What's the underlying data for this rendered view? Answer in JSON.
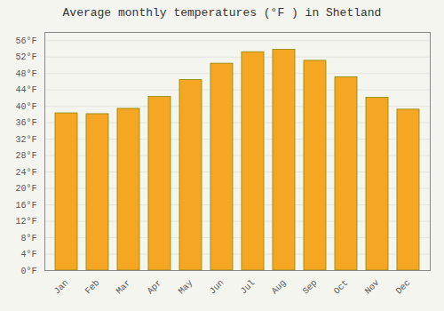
{
  "chart_data": {
    "type": "bar",
    "title": "Average monthly temperatures (°F ) in Shetland",
    "categories": [
      "Jan",
      "Feb",
      "Mar",
      "Apr",
      "May",
      "Jun",
      "Jul",
      "Aug",
      "Sep",
      "Oct",
      "Nov",
      "Dec"
    ],
    "values": [
      38.3,
      38.1,
      39.4,
      42.3,
      46.4,
      50.4,
      53.2,
      53.8,
      51.1,
      47.1,
      42.1,
      39.2
    ],
    "color": "#F5A623",
    "ylim": [
      0,
      58
    ],
    "yticks": [
      {
        "value": 0,
        "label": "0°F"
      },
      {
        "value": 4,
        "label": "4°F"
      },
      {
        "value": 8,
        "label": "8°F"
      },
      {
        "value": 12,
        "label": "12°F"
      },
      {
        "value": 16,
        "label": "16°F"
      },
      {
        "value": 20,
        "label": "20°F"
      },
      {
        "value": 24,
        "label": "24°F"
      },
      {
        "value": 28,
        "label": "28°F"
      },
      {
        "value": 32,
        "label": "32°F"
      },
      {
        "value": 36,
        "label": "36°F"
      },
      {
        "value": 40,
        "label": "40°F"
      },
      {
        "value": 44,
        "label": "44°F"
      },
      {
        "value": 48,
        "label": "48°F"
      },
      {
        "value": 52,
        "label": "52°F"
      },
      {
        "value": 56,
        "label": "56°F"
      }
    ],
    "grid": true
  }
}
